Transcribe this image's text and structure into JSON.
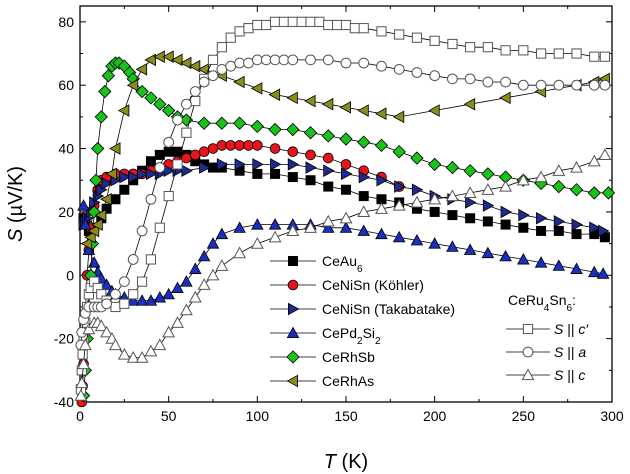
{
  "chart_data": {
    "type": "scatter",
    "xlabel_main": "T",
    "xlabel_unit": " (K)",
    "ylabel_main": "S",
    "ylabel_unit": " (µV/K)",
    "xlim": [
      0,
      300
    ],
    "ylim": [
      -40,
      85
    ],
    "xticks": [
      "0",
      "50",
      "100",
      "150",
      "200",
      "250",
      "300"
    ],
    "yticks": [
      "-40",
      "-20",
      "0",
      "20",
      "40",
      "60",
      "80"
    ],
    "grid": false,
    "legend_left": {
      "placement": "center",
      "entries": [
        {
          "parts": [
            {
              "t": "CeAu"
            },
            {
              "t": "6",
              "sub": true
            }
          ]
        },
        {
          "parts": [
            {
              "t": "CeNiSn (Köhler)"
            }
          ]
        },
        {
          "parts": [
            {
              "t": "CeNiSn (Takabatake)"
            }
          ]
        },
        {
          "parts": [
            {
              "t": "CePd"
            },
            {
              "t": "2",
              "sub": true
            },
            {
              "t": "Si"
            },
            {
              "t": "2",
              "sub": true
            }
          ]
        },
        {
          "parts": [
            {
              "t": "CeRhSb"
            }
          ]
        },
        {
          "parts": [
            {
              "t": "CeRhAs"
            }
          ]
        }
      ]
    },
    "legend_right": {
      "placement": "bottom-right",
      "title_parts": [
        {
          "t": "CeRu"
        },
        {
          "t": "4",
          "sub": true
        },
        {
          "t": "Sn"
        },
        {
          "t": "6",
          "sub": true
        },
        {
          "t": ":"
        }
      ],
      "entries": [
        {
          "parts": [
            {
              "t": "S",
              "italic": true
            },
            {
              "t": " || "
            },
            {
              "t": "c′",
              "italic": true
            }
          ]
        },
        {
          "parts": [
            {
              "t": "S",
              "italic": true
            },
            {
              "t": " || "
            },
            {
              "t": "a",
              "italic": true
            }
          ]
        },
        {
          "parts": [
            {
              "t": "S",
              "italic": true
            },
            {
              "t": " || "
            },
            {
              "t": "c",
              "italic": true
            }
          ]
        }
      ]
    },
    "series": [
      {
        "marker": "square",
        "color": "#000000",
        "x": [
          2,
          3,
          5,
          8,
          12,
          15,
          20,
          25,
          30,
          35,
          40,
          45,
          50,
          55,
          60,
          65,
          70,
          75,
          80,
          90,
          100,
          110,
          120,
          130,
          140,
          150,
          160,
          170,
          180,
          190,
          200,
          210,
          220,
          230,
          240,
          250,
          260,
          270,
          280,
          290,
          296
        ],
        "y": [
          18,
          16,
          14,
          15,
          18,
          21,
          24,
          27,
          30,
          33,
          36,
          38,
          39,
          39,
          38,
          36,
          35,
          34,
          34,
          33,
          32,
          32,
          31,
          30,
          28,
          27,
          25,
          24,
          23,
          21,
          20,
          19,
          18,
          17,
          16,
          15,
          14,
          14,
          13,
          13,
          12
        ]
      },
      {
        "marker": "circle",
        "color": "#e8141c",
        "x": [
          1,
          1.5,
          2,
          2.5,
          3,
          4,
          5,
          6,
          8,
          10,
          12,
          15,
          20,
          25,
          30,
          35,
          40,
          45,
          50,
          55,
          60,
          65,
          70,
          75,
          80,
          85,
          90,
          95,
          100,
          110,
          120,
          130,
          140,
          150,
          160,
          170,
          180
        ],
        "y": [
          -40,
          -35,
          -28,
          -20,
          -12,
          0,
          8,
          15,
          22,
          27,
          30,
          31,
          32,
          32,
          32,
          32,
          33,
          34,
          35,
          36,
          37,
          38,
          39,
          40,
          41,
          41,
          41,
          41,
          41,
          40,
          39,
          38,
          37,
          35,
          33,
          31,
          28
        ]
      },
      {
        "marker": "tri-right",
        "color": "#1f2a8c",
        "x": [
          2,
          3,
          4,
          6,
          8,
          10,
          12,
          15,
          20,
          25,
          30,
          35,
          40,
          45,
          50,
          55,
          60,
          70,
          80,
          90,
          100,
          110,
          120,
          130,
          140,
          150,
          160,
          170,
          180,
          190,
          200,
          210,
          220,
          230,
          240,
          250,
          260,
          270,
          280,
          290,
          295
        ],
        "y": [
          16,
          17,
          18,
          20,
          23,
          25,
          27,
          29,
          30,
          31,
          31,
          32,
          32,
          32,
          33,
          33,
          33,
          34,
          35,
          35,
          35,
          35,
          35,
          34,
          33,
          32,
          31,
          30,
          28,
          27,
          25,
          24,
          23,
          22,
          20,
          19,
          18,
          17,
          16,
          15,
          14
        ]
      },
      {
        "marker": "tri-up",
        "color": "#1a2fbf",
        "x": [
          2,
          3,
          5,
          8,
          10,
          12,
          15,
          18,
          20,
          25,
          30,
          35,
          40,
          45,
          50,
          55,
          60,
          65,
          70,
          75,
          80,
          90,
          100,
          110,
          120,
          130,
          140,
          150,
          160,
          170,
          180,
          190,
          200,
          210,
          220,
          230,
          240,
          250,
          260,
          270,
          280,
          290,
          295
        ],
        "y": [
          22,
          16,
          8,
          4,
          1,
          -1,
          -3,
          -5,
          -6,
          -7,
          -8,
          -8,
          -8,
          -7,
          -6,
          -4,
          -2,
          2,
          6,
          10,
          13,
          15,
          16,
          16,
          16,
          16,
          15,
          15,
          14,
          13,
          12,
          11,
          10,
          9,
          8,
          7,
          6,
          5,
          4,
          3,
          2,
          1,
          0.5
        ]
      },
      {
        "marker": "diamond",
        "color": "#19c219",
        "x": [
          2,
          3,
          4,
          5,
          6,
          7,
          8,
          9,
          10,
          12,
          14,
          16,
          18,
          20,
          22,
          25,
          28,
          30,
          35,
          40,
          45,
          50,
          55,
          60,
          70,
          80,
          90,
          100,
          110,
          120,
          130,
          140,
          150,
          160,
          170,
          180,
          190,
          200,
          210,
          220,
          230,
          240,
          250,
          260,
          270,
          280,
          290,
          298
        ],
        "y": [
          -38,
          -30,
          -20,
          -10,
          0,
          10,
          20,
          30,
          40,
          50,
          58,
          63,
          66,
          67,
          67,
          66,
          64,
          62,
          58,
          56,
          54,
          52,
          50,
          49,
          48,
          48,
          48,
          47,
          46,
          46,
          45,
          44,
          43,
          42,
          41,
          39,
          37,
          35,
          34,
          33,
          32,
          31,
          30,
          29,
          28,
          27,
          26,
          26
        ]
      },
      {
        "marker": "tri-left",
        "color": "#8b8c1e",
        "x": [
          4,
          6,
          8,
          10,
          12,
          15,
          18,
          20,
          25,
          30,
          35,
          40,
          45,
          50,
          55,
          60,
          65,
          70,
          80,
          90,
          100,
          110,
          120,
          130,
          140,
          150,
          160,
          170,
          180,
          200,
          220,
          240,
          260,
          280,
          290,
          296
        ],
        "y": [
          10,
          12,
          14,
          16,
          19,
          24,
          32,
          40,
          52,
          60,
          65,
          68,
          69,
          69,
          68,
          67,
          66,
          65,
          63,
          61,
          59,
          57,
          56,
          55,
          54,
          53,
          52,
          51,
          50,
          52,
          54,
          56,
          58,
          60,
          61,
          62
        ]
      },
      {
        "marker": "square-open",
        "color": "#555555",
        "x": [
          0.5,
          1,
          1.5,
          2,
          3,
          4,
          5,
          6,
          8,
          10,
          12,
          15,
          20,
          25,
          30,
          35,
          40,
          45,
          50,
          55,
          60,
          65,
          70,
          75,
          80,
          85,
          90,
          95,
          100,
          105,
          110,
          115,
          120,
          125,
          130,
          135,
          140,
          145,
          150,
          155,
          160,
          170,
          180,
          190,
          200,
          210,
          220,
          230,
          240,
          250,
          260,
          270,
          280,
          290,
          296
        ],
        "y": [
          -36,
          -30,
          -25,
          -20,
          -15,
          -10,
          -6,
          -4,
          -2,
          -4,
          -6,
          -8,
          -10,
          -9,
          -6,
          -2,
          5,
          15,
          25,
          35,
          45,
          55,
          62,
          68,
          72,
          75,
          77,
          78,
          79,
          79,
          80,
          80,
          80,
          80,
          80,
          80,
          79,
          79,
          79,
          78,
          78,
          77,
          76,
          75,
          74,
          73,
          72,
          72,
          71,
          71,
          70,
          70,
          70,
          69,
          69
        ]
      },
      {
        "marker": "circle-open",
        "color": "#555555",
        "x": [
          0.5,
          1,
          2,
          3,
          5,
          8,
          10,
          12,
          15,
          20,
          25,
          30,
          35,
          40,
          45,
          50,
          55,
          60,
          65,
          70,
          75,
          80,
          85,
          90,
          95,
          100,
          105,
          110,
          115,
          120,
          130,
          140,
          150,
          160,
          170,
          180,
          190,
          200,
          210,
          220,
          230,
          240,
          250,
          260,
          270,
          280,
          290,
          296
        ],
        "y": [
          -22,
          -18,
          -14,
          -12,
          -10,
          -10,
          -10,
          -10,
          -9,
          -6,
          -2,
          5,
          14,
          24,
          34,
          42,
          49,
          54,
          58,
          61,
          63,
          65,
          66,
          67,
          67,
          68,
          68,
          68,
          68,
          68,
          68,
          68,
          67,
          67,
          66,
          65,
          64,
          63,
          62,
          62,
          61,
          61,
          60,
          60,
          60,
          60,
          60,
          60
        ]
      },
      {
        "marker": "tri-up-open",
        "color": "#555555",
        "x": [
          0.5,
          1,
          2,
          3,
          5,
          8,
          10,
          12,
          15,
          18,
          20,
          25,
          30,
          35,
          40,
          45,
          50,
          55,
          60,
          65,
          70,
          75,
          80,
          90,
          100,
          110,
          120,
          130,
          140,
          150,
          160,
          170,
          180,
          190,
          200,
          210,
          220,
          230,
          240,
          250,
          260,
          270,
          280,
          290,
          296
        ],
        "y": [
          -38,
          -34,
          -28,
          -22,
          -17,
          -15,
          -15,
          -16,
          -18,
          -20,
          -22,
          -25,
          -26,
          -26,
          -24,
          -22,
          -18,
          -15,
          -11,
          -7,
          -3,
          0,
          3,
          7,
          10,
          12,
          14,
          15,
          17,
          18,
          20,
          21,
          22,
          23,
          24,
          25,
          26,
          27,
          28,
          30,
          31,
          33,
          34,
          36,
          38
        ]
      }
    ]
  }
}
